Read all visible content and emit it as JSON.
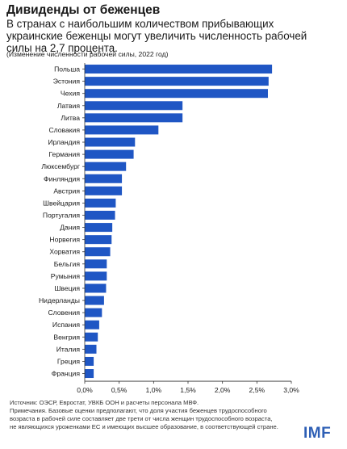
{
  "title": "Дивиденды от беженцев",
  "subtitle": "В странах с наибольшим количеством прибывающих украинские беженцы могут увеличить численность рабочей силы на 2,7 процента.",
  "unit_note": "(Изменение численности рабочей силы, 2022 год)",
  "source_line": "Источник: ОЭСР, Евростат, УВКБ ООН и расчеты персонала МВФ.",
  "note_line": "Примечания. Базовые оценки предполагают, что доля участия беженцев трудоспособного возраста в рабочей силе составляет две трети от числа женщин трудоспособного возраста, не являющихся уроженками ЕС и имеющих высшее образование, в соответствующей стране.",
  "logo": "IMF",
  "colors": {
    "bar": "#1f56c4",
    "axis": "#333333",
    "title": "#1a1a1a",
    "logo": "#2e5fb5"
  },
  "chart_data": {
    "type": "bar",
    "orientation": "horizontal",
    "categories": [
      "Польша",
      "Эстония",
      "Чехия",
      "Латвия",
      "Литва",
      "Словакия",
      "Ирландия",
      "Германия",
      "Люксембург",
      "Финляндия",
      "Австрия",
      "Швейцария",
      "Португалия",
      "Дания",
      "Норвегия",
      "Хорватия",
      "Бельгия",
      "Румыния",
      "Швеция",
      "Нидерланды",
      "Словения",
      "Испания",
      "Венгрия",
      "Италия",
      "Греция",
      "Франция"
    ],
    "values": [
      2.72,
      2.67,
      2.66,
      1.42,
      1.42,
      1.07,
      0.73,
      0.71,
      0.6,
      0.54,
      0.54,
      0.45,
      0.44,
      0.4,
      0.39,
      0.37,
      0.32,
      0.32,
      0.31,
      0.28,
      0.25,
      0.21,
      0.19,
      0.17,
      0.13,
      0.13
    ],
    "xlim": [
      0,
      3.0
    ],
    "xticks": [
      0,
      0.5,
      1.0,
      1.5,
      2.0,
      2.5,
      3.0
    ],
    "xtick_labels": [
      "0,0%",
      "0,5%",
      "1,0%",
      "1,5%",
      "2,0%",
      "2,5%",
      "3,0%"
    ],
    "grid": false
  }
}
